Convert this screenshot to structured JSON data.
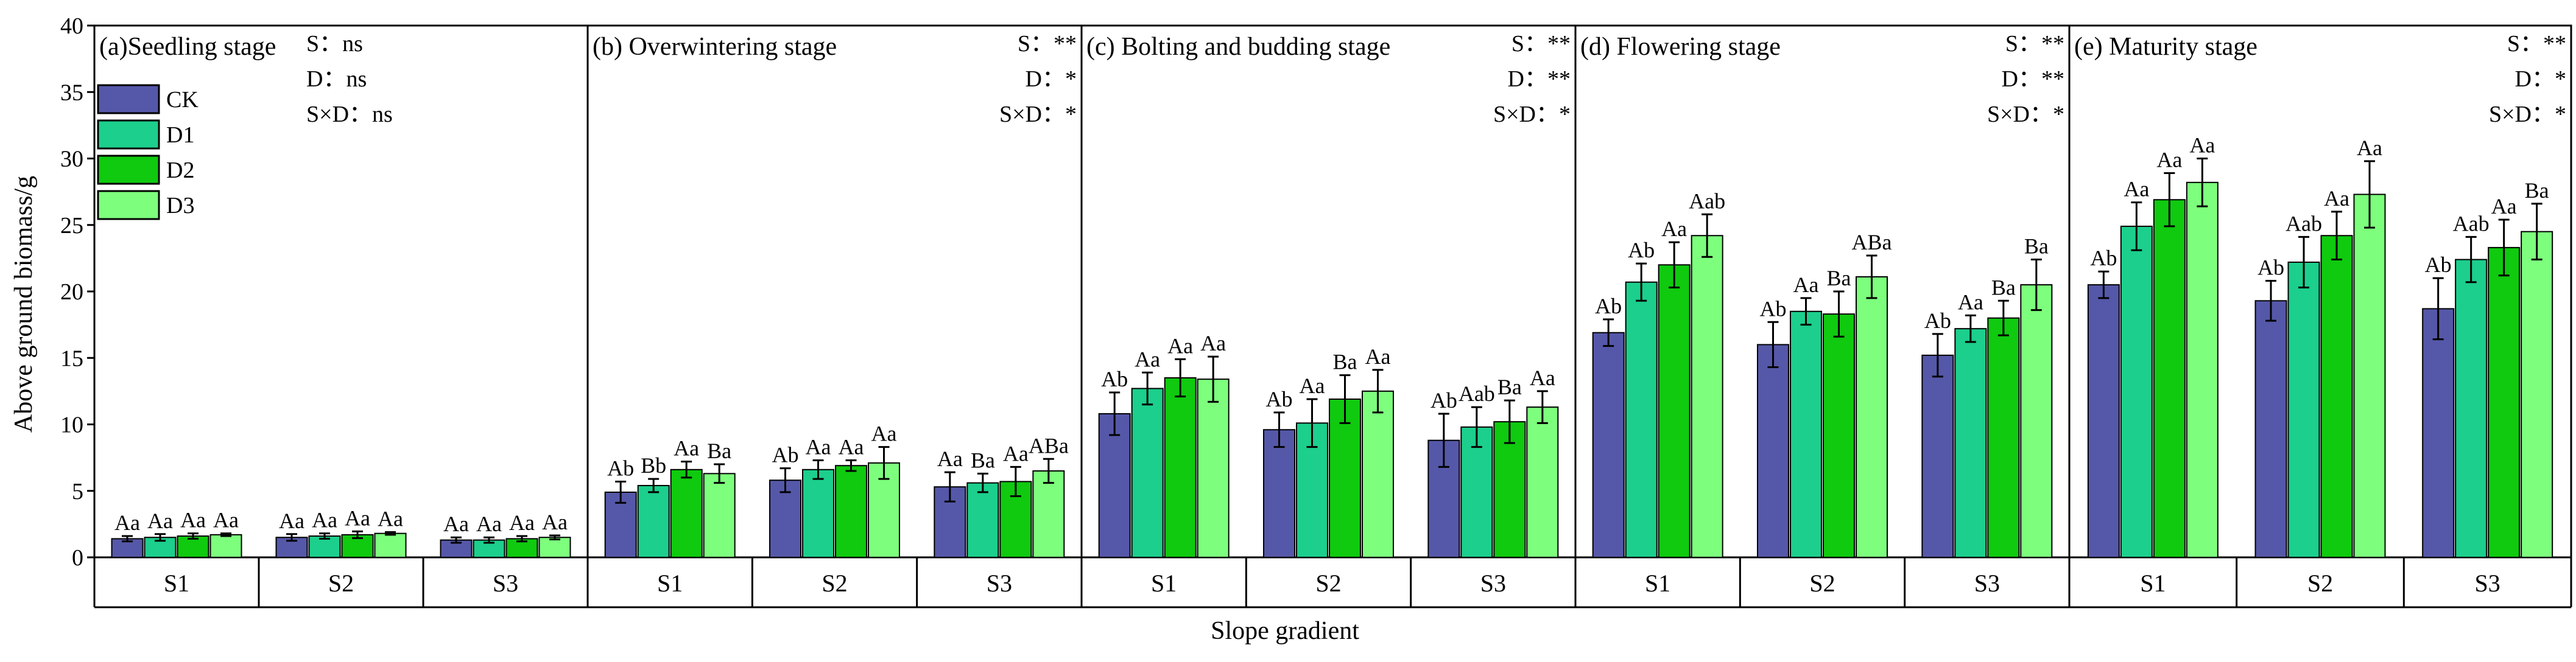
{
  "chart_data": {
    "type": "bar",
    "ylabel": "Above ground biomass/g",
    "xlabel": "Slope gradient",
    "ylim": [
      0,
      40
    ],
    "yticks": [
      0,
      5,
      10,
      15,
      20,
      25,
      30,
      35,
      40
    ],
    "ytick_labels": [
      "0",
      "5",
      "10",
      "15",
      "20",
      "25",
      "30",
      "35",
      "40"
    ],
    "categories": [
      "S1",
      "S2",
      "S3"
    ],
    "series_names": [
      "CK",
      "D1",
      "D2",
      "D3"
    ],
    "colors": {
      "CK": "#5558a8",
      "D1": "#1ccf8c",
      "D2": "#0fca0f",
      "D3": "#7dff7d"
    },
    "legend": {
      "position": "top-left",
      "entries": [
        "CK",
        "D1",
        "D2",
        "D3"
      ]
    },
    "panels": [
      {
        "title": "(a)Seedling stage",
        "stats": [
          "S：ns",
          "D：ns",
          "S×D：ns"
        ],
        "values": [
          [
            1.4,
            1.5,
            1.6,
            1.7
          ],
          [
            1.5,
            1.6,
            1.7,
            1.8
          ],
          [
            1.3,
            1.3,
            1.4,
            1.5
          ]
        ],
        "errors": [
          [
            0.2,
            0.25,
            0.2,
            0.1
          ],
          [
            0.25,
            0.2,
            0.25,
            0.1
          ],
          [
            0.2,
            0.2,
            0.2,
            0.15
          ]
        ],
        "labels": [
          [
            "Aa",
            "Aa",
            "Aa",
            "Aa"
          ],
          [
            "Aa",
            "Aa",
            "Aa",
            "Aa"
          ],
          [
            "Aa",
            "Aa",
            "Aa",
            "Aa"
          ]
        ]
      },
      {
        "title": "(b) Overwintering stage",
        "stats": [
          "S：**",
          "D：*",
          "S×D：*"
        ],
        "values": [
          [
            4.9,
            5.4,
            6.6,
            6.3
          ],
          [
            5.8,
            6.6,
            6.9,
            7.1
          ],
          [
            5.3,
            5.6,
            5.7,
            6.5
          ]
        ],
        "errors": [
          [
            0.8,
            0.5,
            0.6,
            0.7
          ],
          [
            0.9,
            0.7,
            0.4,
            1.2
          ],
          [
            1.1,
            0.7,
            1.1,
            0.9
          ]
        ],
        "labels": [
          [
            "Ab",
            "Bb",
            "Aa",
            "Ba"
          ],
          [
            "Ab",
            "Aa",
            "Aa",
            "Aa"
          ],
          [
            "Aa",
            "Ba",
            "Aa",
            "ABa"
          ]
        ]
      },
      {
        "title": "(c) Bolting and budding stage",
        "stats": [
          "S：**",
          "D：**",
          "S×D：*"
        ],
        "values": [
          [
            10.8,
            12.7,
            13.5,
            13.4
          ],
          [
            9.6,
            10.1,
            11.9,
            12.5
          ],
          [
            8.8,
            9.8,
            10.2,
            11.3
          ]
        ],
        "errors": [
          [
            1.6,
            1.2,
            1.4,
            1.7
          ],
          [
            1.3,
            1.8,
            1.8,
            1.6
          ],
          [
            2.0,
            1.5,
            1.6,
            1.2
          ]
        ],
        "labels": [
          [
            "Ab",
            "Aa",
            "Aa",
            "Aa"
          ],
          [
            "Ab",
            "Aa",
            "Ba",
            "Aa"
          ],
          [
            "Ab",
            "Aab",
            "Ba",
            "Aa"
          ]
        ]
      },
      {
        "title": "(d) Flowering stage",
        "stats": [
          "S：**",
          "D：**",
          "S×D：*"
        ],
        "values": [
          [
            16.9,
            20.7,
            22.0,
            24.2
          ],
          [
            16.0,
            18.5,
            18.3,
            21.1
          ],
          [
            15.2,
            17.2,
            18.0,
            20.5
          ]
        ],
        "errors": [
          [
            1.0,
            1.4,
            1.7,
            1.6
          ],
          [
            1.7,
            1.0,
            1.7,
            1.6
          ],
          [
            1.6,
            1.0,
            1.3,
            1.9
          ]
        ],
        "labels": [
          [
            "Ab",
            "Ab",
            "Aa",
            "Aab"
          ],
          [
            "Ab",
            "Aa",
            "Ba",
            "ABa"
          ],
          [
            "Ab",
            "Aa",
            "Ba",
            "Ba"
          ]
        ]
      },
      {
        "title": "(e) Maturity stage",
        "stats": [
          "S：**",
          "D：*",
          "S×D：*"
        ],
        "values": [
          [
            20.5,
            24.9,
            26.9,
            28.2
          ],
          [
            19.3,
            22.2,
            24.2,
            27.3
          ],
          [
            18.7,
            22.4,
            23.3,
            24.5
          ]
        ],
        "errors": [
          [
            1.0,
            1.8,
            2.0,
            1.8
          ],
          [
            1.5,
            1.9,
            1.8,
            2.5
          ],
          [
            2.3,
            1.7,
            2.1,
            2.1
          ]
        ],
        "labels": [
          [
            "Ab",
            "Aa",
            "Aa",
            "Aa"
          ],
          [
            "Ab",
            "Aab",
            "Aa",
            "Aa"
          ],
          [
            "Ab",
            "Aab",
            "Aa",
            "Ba"
          ]
        ]
      }
    ]
  }
}
